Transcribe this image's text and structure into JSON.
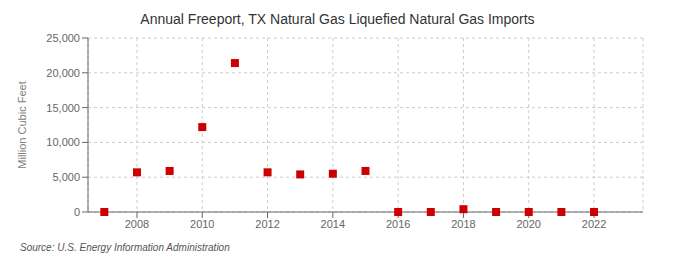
{
  "chart_data": {
    "type": "scatter",
    "title": "Annual Freeport, TX Natural Gas Liquefied Natural Gas Imports",
    "y_label": "Million Cubic Feet",
    "annotations": [
      "Source: U.S. Energy Information Administration"
    ],
    "x": [
      2007,
      2008,
      2009,
      2010,
      2011,
      2012,
      2013,
      2014,
      2015,
      2016,
      2017,
      2018,
      2019,
      2020,
      2021,
      2022
    ],
    "values": [
      0,
      5700,
      5900,
      12200,
      21400,
      5700,
      5400,
      5500,
      5900,
      0,
      0,
      400,
      0,
      0,
      0,
      0
    ],
    "color": "#cc0000",
    "marker": "square",
    "xlim": [
      2006.5,
      2023.5
    ],
    "xticks": [
      2008,
      2010,
      2012,
      2014,
      2016,
      2018,
      2020,
      2022
    ],
    "ylim": [
      0,
      25000
    ],
    "yticks": [
      0,
      {
        "value": 5000,
        "label": "5,000"
      },
      {
        "value": 10000,
        "label": "10,000"
      },
      {
        "value": 15000,
        "label": "15,000"
      },
      {
        "value": 20000,
        "label": "20,000"
      },
      {
        "value": 25000,
        "label": "25,000"
      }
    ],
    "grid": true
  }
}
